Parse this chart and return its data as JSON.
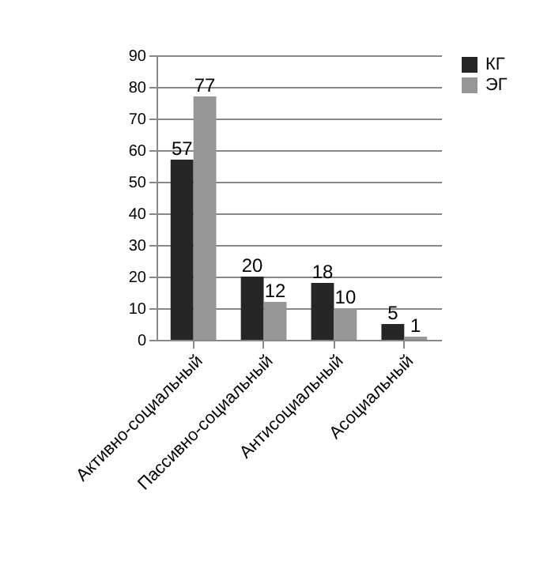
{
  "chart_data": {
    "type": "bar",
    "categories": [
      "Активно-социальный",
      "Пассивно-социальный",
      "Антисоциальный",
      "Асоциальный"
    ],
    "series": [
      {
        "name": "КГ",
        "color": "#262626",
        "values": [
          57,
          20,
          18,
          5
        ]
      },
      {
        "name": "ЭГ",
        "color": "#969696",
        "values": [
          77,
          12,
          10,
          1
        ]
      }
    ],
    "ylim": [
      0,
      90
    ],
    "yticks": [
      0,
      10,
      20,
      30,
      40,
      50,
      60,
      70,
      80,
      90
    ],
    "grid": "y",
    "legend": "right",
    "data_labels": true
  }
}
